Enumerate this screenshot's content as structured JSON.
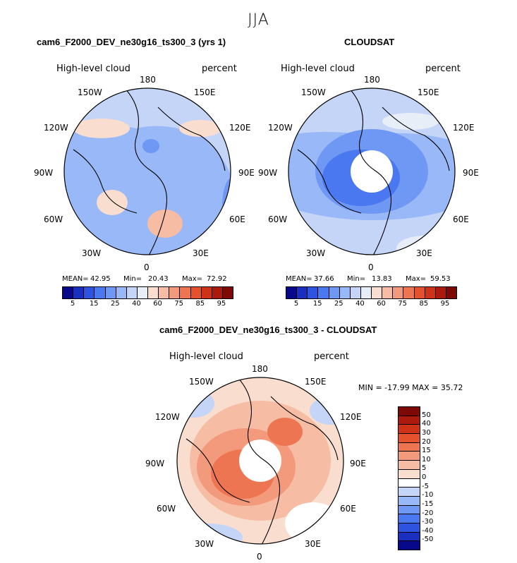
{
  "figure": {
    "season": "JJA"
  },
  "colors": {
    "abs_scale": [
      "#08088a",
      "#1a2ec0",
      "#2d53e0",
      "#4a78f0",
      "#6f98f4",
      "#99b8f7",
      "#c4d5f8",
      "#e8eef8",
      "#f9ddcf",
      "#f6bca4",
      "#f29a7b",
      "#ee7552",
      "#e5502d",
      "#cf3317",
      "#ab1a0c",
      "#7d0a05"
    ],
    "diff_scale": [
      "#7d0a05",
      "#ab1a0c",
      "#cf3317",
      "#e5502d",
      "#ee7552",
      "#f29a7b",
      "#f6bca4",
      "#f9ddcf",
      "#ffffff",
      "#c4d5f8",
      "#99b8f7",
      "#6f98f4",
      "#4a78f0",
      "#2d53e0",
      "#1a2ec0",
      "#08088a"
    ]
  },
  "plots": {
    "model": {
      "title": "cam6_F2000_DEV_ne30g16_ts300_3 (yrs 1)",
      "variable": "High-level cloud",
      "units": "percent",
      "stats": {
        "mean_label": "MEAN=",
        "mean": "42.95",
        "min_label": "Min=",
        "min": "20.43",
        "max_label": "Max=",
        "max": "72.92"
      },
      "colorbar_labels": [
        "5",
        "15",
        "25",
        "40",
        "60",
        "75",
        "85",
        "95"
      ]
    },
    "obs": {
      "title": "CLOUDSAT",
      "variable": "High-level cloud",
      "units": "percent",
      "stats": {
        "mean_label": "MEAN=",
        "mean": "37.66",
        "min_label": "Min=",
        "min": "13.83",
        "max_label": "Max=",
        "max": "59.53"
      },
      "colorbar_labels": [
        "5",
        "15",
        "25",
        "40",
        "60",
        "75",
        "85",
        "95"
      ]
    },
    "diff": {
      "title": "cam6_F2000_DEV_ne30g16_ts300_3 - CLOUDSAT",
      "variable": "High-level cloud",
      "units": "percent",
      "minmax": "MIN = -17.99 MAX =  35.72",
      "colorbar_labels": [
        "50",
        "40",
        "30",
        "20",
        "15",
        "10",
        "5",
        "0",
        "-5",
        "-10",
        "-15",
        "-20",
        "-30",
        "-40",
        "-50"
      ]
    }
  },
  "longitude_labels": {
    "top": [
      "150W",
      "180",
      "150E"
    ],
    "left": [
      "120W",
      "90W",
      "60W",
      "30W"
    ],
    "right": [
      "120E",
      "90E",
      "60E",
      "30E"
    ],
    "bottom": "0"
  },
  "chart_data": [
    {
      "type": "heatmap",
      "title": "cam6_F2000_DEV_ne30g16_ts300_3 (yrs 1)",
      "subtitle": "High-level cloud (percent), JJA, north polar stereographic",
      "mean": 42.95,
      "min": 20.43,
      "max": 72.92,
      "colorbar_levels": [
        5,
        15,
        25,
        40,
        60,
        75,
        85,
        95
      ],
      "units": "percent"
    },
    {
      "type": "heatmap",
      "title": "CLOUDSAT",
      "subtitle": "High-level cloud (percent), JJA, north polar stereographic",
      "mean": 37.66,
      "min": 13.83,
      "max": 59.53,
      "colorbar_levels": [
        5,
        15,
        25,
        40,
        60,
        75,
        85,
        95
      ],
      "units": "percent"
    },
    {
      "type": "heatmap",
      "title": "cam6_F2000_DEV_ne30g16_ts300_3 - CLOUDSAT",
      "subtitle": "High-level cloud difference (percent)",
      "min": -17.99,
      "max": 35.72,
      "colorbar_levels": [
        -50,
        -40,
        -30,
        -20,
        -15,
        -10,
        -5,
        0,
        5,
        10,
        15,
        20,
        30,
        40,
        50
      ],
      "units": "percent"
    }
  ]
}
